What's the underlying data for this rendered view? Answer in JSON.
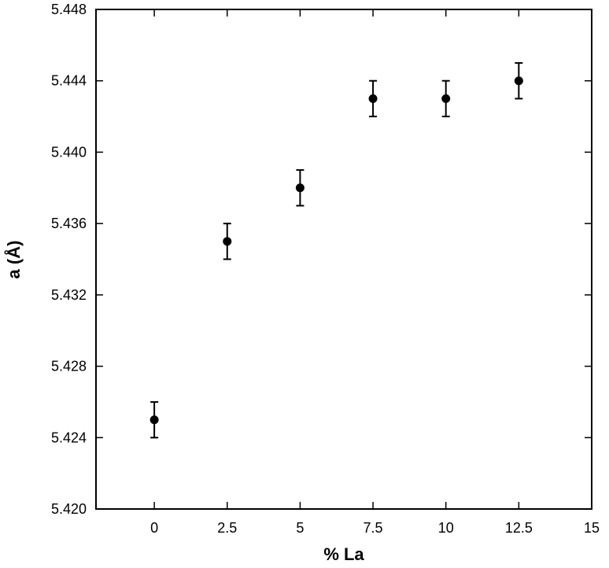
{
  "chart_data": {
    "type": "scatter",
    "xlabel": "% La",
    "ylabel": "a (Å)",
    "xlim": [
      -2,
      15
    ],
    "ylim": [
      5.42,
      5.448
    ],
    "x_ticks": [
      0,
      2.5,
      5,
      7.5,
      10,
      12.5,
      15
    ],
    "x_tick_labels": [
      "0",
      "2.5",
      "5",
      "7.5",
      "10",
      "12.5",
      "15"
    ],
    "y_ticks": [
      5.42,
      5.424,
      5.428,
      5.432,
      5.436,
      5.44,
      5.444,
      5.448
    ],
    "y_tick_labels": [
      "5.420",
      "5.424",
      "5.428",
      "5.432",
      "5.436",
      "5.440",
      "5.444",
      "5.448"
    ],
    "grid": false,
    "marker_color": "#000000",
    "series": [
      {
        "x": [
          0,
          2.5,
          5,
          7.5,
          10,
          12.5
        ],
        "y": [
          5.425,
          5.435,
          5.438,
          5.443,
          5.443,
          5.444
        ],
        "error": [
          0.001,
          0.001,
          0.001,
          0.001,
          0.001,
          0.001
        ]
      }
    ]
  }
}
